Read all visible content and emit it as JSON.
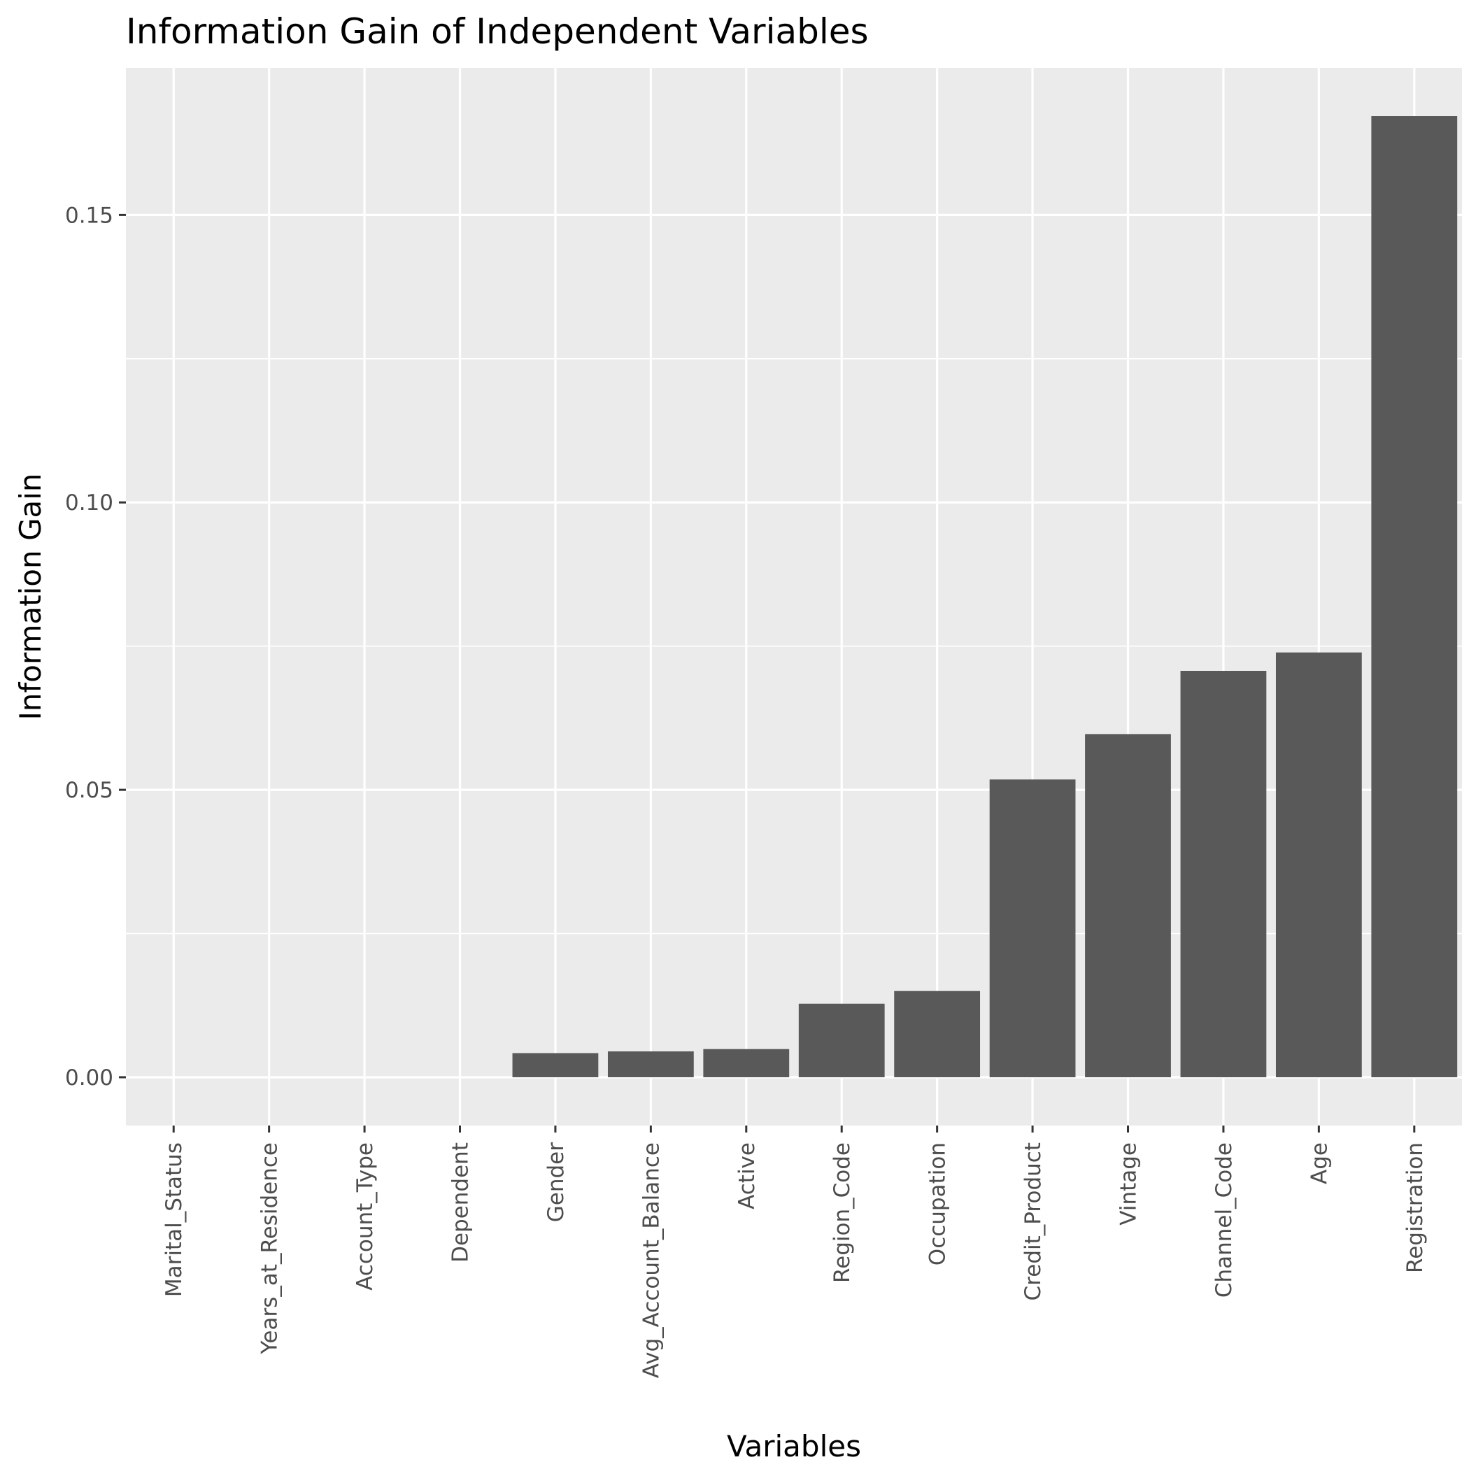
{
  "chart_data": {
    "type": "bar",
    "title": "Information Gain of Independent Variables",
    "xlabel": "Variables",
    "ylabel": "Information Gain",
    "categories": [
      "Marital_Status",
      "Years_at_Residence",
      "Account_Type",
      "Dependent",
      "Gender",
      "Avg_Account_Balance",
      "Active",
      "Region_Code",
      "Occupation",
      "Credit_Product",
      "Vintage",
      "Channel_Code",
      "Age",
      "Registration"
    ],
    "values": [
      0,
      0,
      0,
      0,
      0.0042,
      0.0045,
      0.0049,
      0.0128,
      0.015,
      0.0518,
      0.0597,
      0.0707,
      0.0739,
      0.1672
    ],
    "y_ticks": [
      0,
      0.05,
      0.1,
      0.15
    ],
    "y_tick_labels": [
      "0.00",
      "0.05",
      "0.10",
      "0.15"
    ],
    "ylim": [
      -0.0084,
      0.1756
    ],
    "grid": true,
    "legend": "none",
    "colors": {
      "bar": "#595959",
      "panel": "#ebebeb",
      "grid": "#ffffff",
      "tick_text": "#4d4d4d",
      "tick_mark": "#333333"
    }
  }
}
